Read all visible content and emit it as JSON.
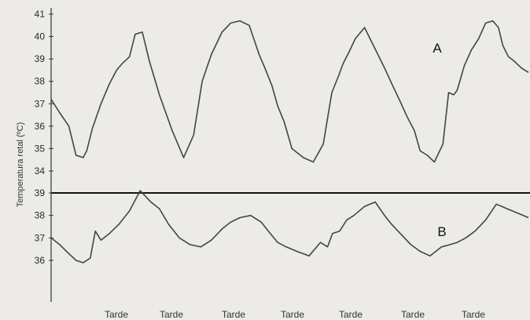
{
  "chart_data": [
    {
      "type": "line",
      "panel_label": "A",
      "ylabel": "Temperatura retal (ºC)",
      "ylim": [
        34,
        41
      ],
      "yticks": [
        "34",
        "35",
        "36",
        "37",
        "38",
        "39",
        "40",
        "41"
      ],
      "xlim": [
        0,
        670
      ],
      "series": [
        {
          "x": [
            0,
            12,
            25,
            35,
            45,
            50,
            58,
            70,
            82,
            92,
            100,
            110,
            118,
            128,
            138,
            152,
            170,
            186,
            200,
            212,
            225,
            240,
            252,
            265,
            278,
            292,
            300,
            310,
            318,
            327,
            338,
            354,
            368,
            382,
            394,
            403,
            410,
            418,
            427,
            440,
            454,
            468,
            478,
            490,
            500,
            510,
            518,
            528,
            538,
            550,
            558,
            565,
            570,
            580,
            590,
            600,
            610,
            620,
            628,
            634,
            642,
            650,
            660,
            670
          ],
          "y": [
            37.2,
            36.6,
            36.0,
            34.7,
            34.6,
            34.9,
            35.9,
            37.0,
            37.9,
            38.5,
            38.8,
            39.1,
            40.1,
            40.2,
            38.9,
            37.4,
            35.8,
            34.6,
            35.6,
            38.0,
            39.2,
            40.2,
            40.6,
            40.7,
            40.5,
            39.2,
            38.6,
            37.8,
            36.9,
            36.2,
            35.0,
            34.6,
            34.4,
            35.2,
            37.5,
            38.2,
            38.8,
            39.3,
            39.9,
            40.4,
            39.5,
            38.6,
            37.9,
            37.1,
            36.4,
            35.8,
            34.9,
            34.7,
            34.4,
            35.2,
            37.5,
            37.4,
            37.6,
            38.7,
            39.4,
            39.9,
            40.6,
            40.7,
            40.4,
            39.6,
            39.1,
            38.9,
            38.6,
            38.4
          ]
        }
      ]
    },
    {
      "type": "line",
      "panel_label": "B",
      "ylim": [
        35.5,
        39.5
      ],
      "yticks": [
        "36",
        "37",
        "38",
        "39"
      ],
      "xlim": [
        0,
        670
      ],
      "xtick_labels": [
        "Tarde",
        "Tarde",
        "Tarde",
        "Tarde",
        "Tarde",
        "Tarde",
        "Tarde"
      ],
      "series": [
        {
          "x": [
            0,
            12,
            25,
            35,
            45,
            55,
            62,
            70,
            82,
            95,
            110,
            125,
            140,
            152,
            165,
            180,
            195,
            210,
            225,
            240,
            252,
            265,
            280,
            295,
            305,
            318,
            330,
            345,
            362,
            378,
            388,
            395,
            405,
            415,
            425,
            440,
            455,
            468,
            478,
            490,
            505,
            518,
            532,
            548,
            560,
            570,
            582,
            595,
            610,
            625,
            640,
            655,
            670
          ],
          "y": [
            37.0,
            36.7,
            36.3,
            36.0,
            35.9,
            36.1,
            37.3,
            36.9,
            37.2,
            37.6,
            38.2,
            39.1,
            38.6,
            38.3,
            37.6,
            37.0,
            36.7,
            36.6,
            36.9,
            37.4,
            37.7,
            37.9,
            38.0,
            37.7,
            37.3,
            36.8,
            36.6,
            36.4,
            36.2,
            36.8,
            36.6,
            37.2,
            37.3,
            37.8,
            38.0,
            38.4,
            38.6,
            38.0,
            37.6,
            37.2,
            36.7,
            36.4,
            36.2,
            36.6,
            36.7,
            36.8,
            37.0,
            37.3,
            37.8,
            38.5,
            38.3,
            38.1,
            37.9
          ]
        }
      ]
    }
  ]
}
